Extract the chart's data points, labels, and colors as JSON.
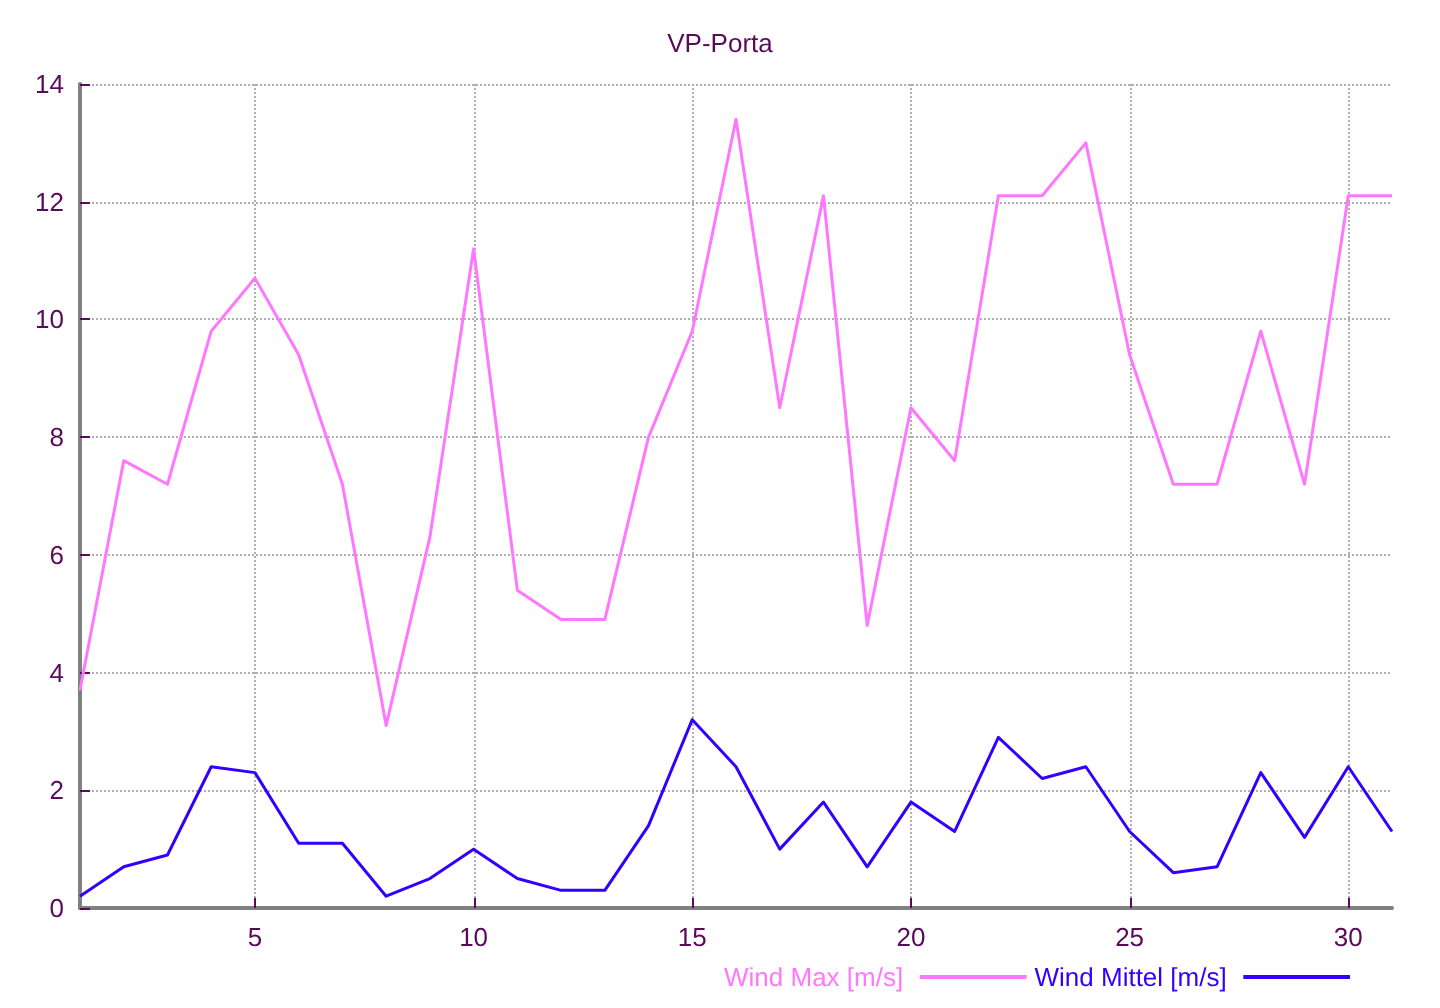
{
  "chart_data": {
    "type": "line",
    "title": "VP-Porta",
    "x": [
      1,
      2,
      3,
      4,
      5,
      6,
      7,
      8,
      9,
      10,
      11,
      12,
      13,
      14,
      15,
      16,
      17,
      18,
      19,
      20,
      21,
      22,
      23,
      24,
      25,
      26,
      27,
      28,
      29,
      30,
      31
    ],
    "series": [
      {
        "name": "Wind Max [m/s]",
        "color": "#ff77ff",
        "values": [
          3.7,
          7.6,
          7.2,
          9.8,
          10.7,
          9.4,
          7.2,
          3.1,
          6.3,
          11.2,
          5.4,
          4.9,
          4.9,
          8.0,
          9.8,
          13.4,
          8.5,
          12.1,
          4.8,
          8.5,
          7.6,
          12.1,
          12.1,
          13.0,
          9.4,
          7.2,
          7.2,
          9.8,
          7.2,
          12.1,
          12.1
        ]
      },
      {
        "name": "Wind Mittel [m/s]",
        "color": "#3300ff",
        "values": [
          0.2,
          0.7,
          0.9,
          2.4,
          2.3,
          1.1,
          1.1,
          0.2,
          0.5,
          1.0,
          0.5,
          0.3,
          0.3,
          1.4,
          3.2,
          2.4,
          1.0,
          1.8,
          0.7,
          1.8,
          1.3,
          2.9,
          2.2,
          2.4,
          1.3,
          0.6,
          0.7,
          2.3,
          1.2,
          2.4,
          1.3
        ]
      }
    ],
    "xlim": [
      1,
      31
    ],
    "xticks": [
      5,
      10,
      15,
      20,
      25,
      30
    ],
    "ylim": [
      0,
      14
    ],
    "yticks": [
      0,
      2,
      4,
      6,
      8,
      10,
      12,
      14
    ],
    "grid": true,
    "legend": "bottom right",
    "marker": "none",
    "line_style": "solid"
  }
}
